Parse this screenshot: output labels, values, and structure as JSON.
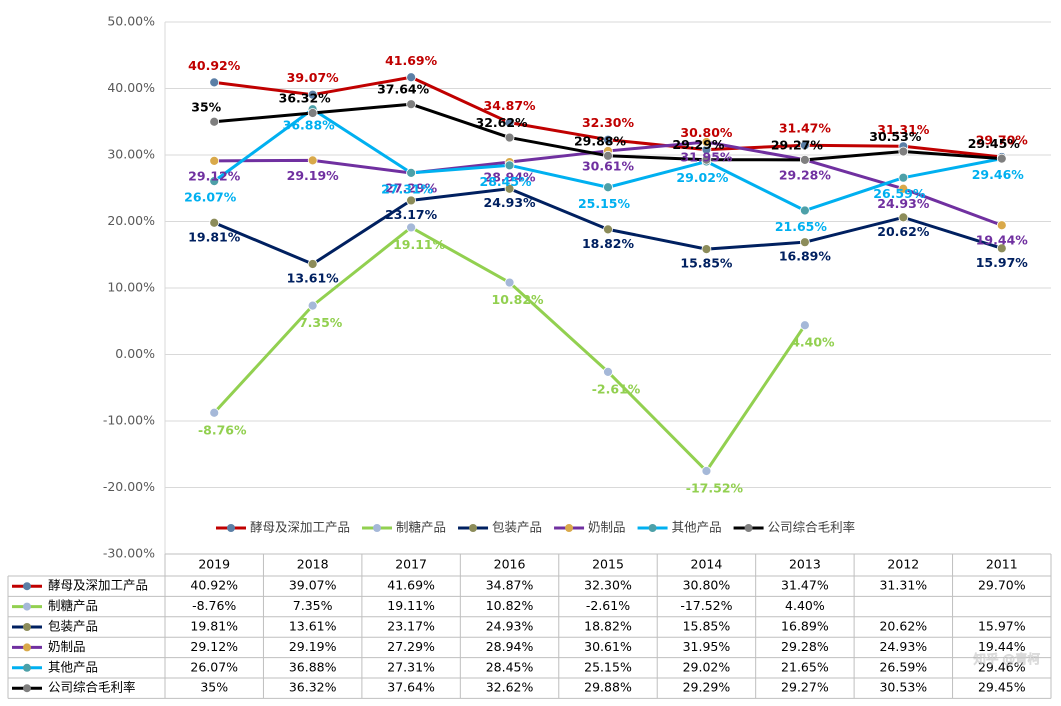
{
  "chart_data": {
    "type": "line",
    "categories": [
      "2019",
      "2018",
      "2017",
      "2016",
      "2015",
      "2014",
      "2013",
      "2012",
      "2011"
    ],
    "ylim": [
      -30,
      50
    ],
    "yticks": [
      {
        "value": -30,
        "label": "-30.00%"
      },
      {
        "value": -20,
        "label": "-20.00%"
      },
      {
        "value": -10,
        "label": "-10.00%"
      },
      {
        "value": 0,
        "label": "0.00%"
      },
      {
        "value": 10,
        "label": "10.00%"
      },
      {
        "value": 20,
        "label": "20.00%"
      },
      {
        "value": 30,
        "label": "30.00%"
      },
      {
        "value": 40,
        "label": "40.00%"
      },
      {
        "value": 50,
        "label": "50.00%"
      }
    ],
    "grid": true,
    "legend": "bottom",
    "data_table": true,
    "watermark": "知乎 @青柯",
    "series": [
      {
        "name": "酵母及深加工产品",
        "color": "#c00000",
        "marker": "#5b7fa6",
        "values": [
          40.92,
          39.07,
          41.69,
          34.87,
          32.3,
          30.8,
          31.47,
          31.31,
          29.7
        ],
        "value_labels": [
          "40.92%",
          "39.07%",
          "41.69%",
          "34.87%",
          "32.30%",
          "30.80%",
          "31.47%",
          "31.31%",
          "29.70%"
        ]
      },
      {
        "name": "制糖产品",
        "color": "#92d050",
        "marker": "#a5b8d8",
        "values": [
          -8.76,
          7.35,
          19.11,
          10.82,
          -2.61,
          -17.52,
          4.4,
          null,
          null
        ],
        "value_labels": [
          "-8.76%",
          "7.35%",
          "19.11%",
          "10.82%",
          "-2.61%",
          "-17.52%",
          "4.40%",
          null,
          null
        ]
      },
      {
        "name": "包装产品",
        "color": "#002060",
        "marker": "#8c8c5a",
        "values": [
          19.81,
          13.61,
          23.17,
          24.93,
          18.82,
          15.85,
          16.89,
          20.62,
          15.97
        ],
        "value_labels": [
          "19.81%",
          "13.61%",
          "23.17%",
          "24.93%",
          "18.82%",
          "15.85%",
          "16.89%",
          "20.62%",
          "15.97%"
        ]
      },
      {
        "name": "奶制品",
        "color": "#7030a0",
        "marker": "#d9a94a",
        "values": [
          29.12,
          29.19,
          27.29,
          28.94,
          30.61,
          31.95,
          29.28,
          24.93,
          19.44
        ],
        "value_labels": [
          "29.12%",
          "29.19%",
          "27.29%",
          "28.94%",
          "30.61%",
          "31.95%",
          "29.28%",
          "24.93%",
          "19.44%"
        ]
      },
      {
        "name": "其他产品",
        "color": "#00b0f0",
        "marker": "#4da0a8",
        "values": [
          26.07,
          36.88,
          27.31,
          28.45,
          25.15,
          29.02,
          21.65,
          26.59,
          29.46
        ],
        "value_labels": [
          "26.07%",
          "36.88%",
          "27.31%",
          "28.45%",
          "25.15%",
          "29.02%",
          "21.65%",
          "26.59%",
          "29.46%"
        ]
      },
      {
        "name": "公司综合毛利率",
        "color": "#000000",
        "marker": "#7f7f7f",
        "values": [
          35,
          36.32,
          37.64,
          32.62,
          29.88,
          29.29,
          29.27,
          30.53,
          29.45
        ],
        "value_labels": [
          "35%",
          "36.32%",
          "37.64%",
          "32.62%",
          "29.88%",
          "29.29%",
          "29.27%",
          "30.53%",
          "29.45%"
        ]
      }
    ]
  }
}
